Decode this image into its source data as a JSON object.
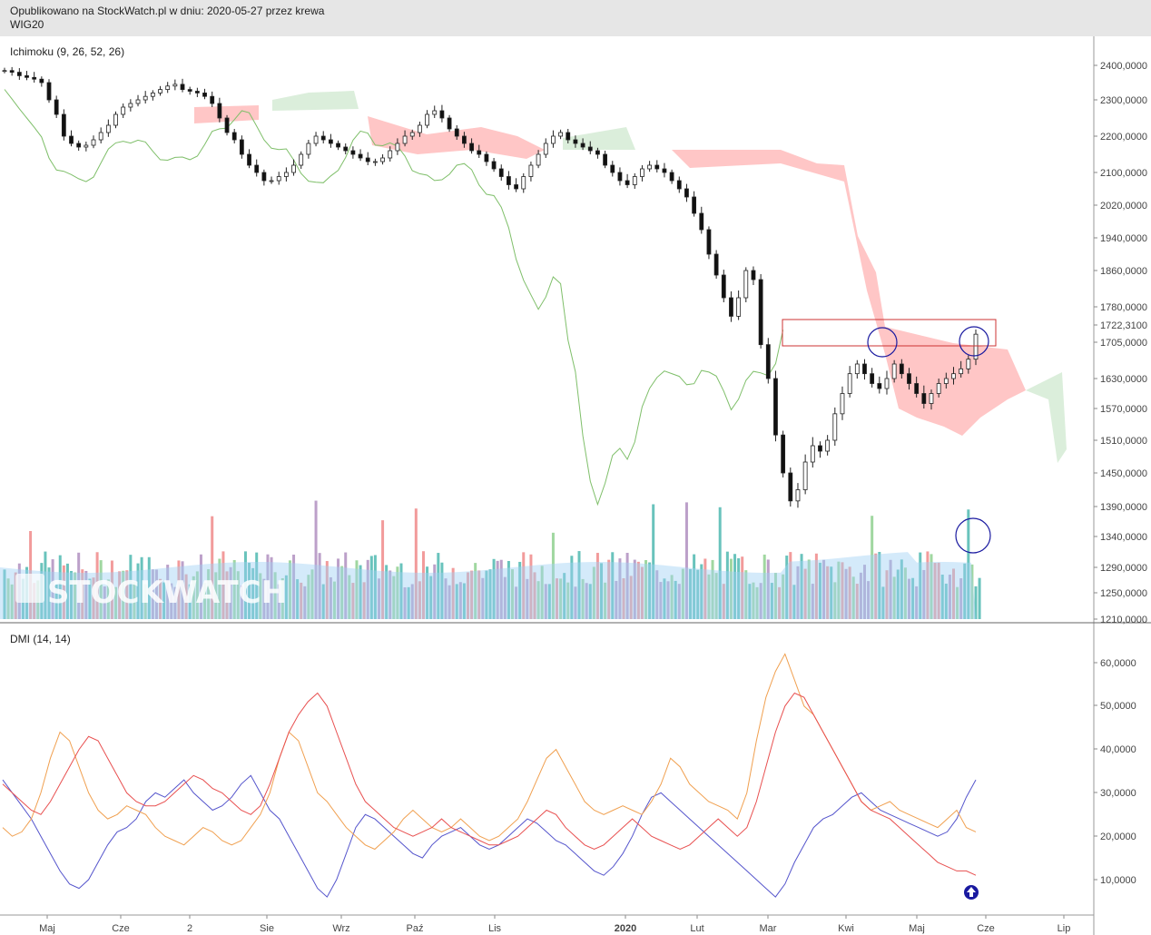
{
  "header": {
    "published": "Opublikowano na StockWatch.pl w dniu: 2020-05-27 przez krewa",
    "symbol": "WIG20"
  },
  "logo_text": "STOCKWATCH",
  "colors": {
    "bull": "#2e7d32",
    "bear": "#111111",
    "cloud_bear": "#ffb3b3",
    "cloud_bull": "#cfe8cf",
    "chikou": "#7fbf6a",
    "vol_green": "#8fd08f",
    "vol_red": "#f08a8a",
    "vol_purple": "#b08fc0",
    "vol_teal": "#4fb8b0",
    "vol_ma": "#9fd1f5",
    "dmi_plus": "#5555cc",
    "dmi_minus": "#f0a050",
    "adx": "#e85050",
    "annotation": "#1a1aa0",
    "rect": "#cc3333"
  },
  "chart_data": [
    {
      "type": "candlestick",
      "title": "Ichimoku (9, 26, 52, 26)",
      "ylim": [
        1210,
        2420
      ],
      "y_ticks": [
        "2400,0000",
        "2300,0000",
        "2200,0000",
        "2100,0000",
        "2020,0000",
        "1940,0000",
        "1860,0000",
        "1780,0000",
        "1705,0000",
        "1630,0000",
        "1570,0000",
        "1510,0000",
        "1450,0000",
        "1390,0000",
        "1340,0000",
        "1290,0000",
        "1250,0000",
        "1210,0000"
      ],
      "last_price_label": "1722,3100",
      "last_price": 1722.31,
      "x_ticks": [
        "Maj",
        "Cze",
        "2",
        "Sie",
        "Wrz",
        "Paź",
        "Lis",
        "2020",
        "Lut",
        "Mar",
        "Kwi",
        "Maj",
        "Cze",
        "Lip"
      ],
      "close_series": [
        2385,
        2380,
        2370,
        2365,
        2360,
        2350,
        2300,
        2260,
        2200,
        2180,
        2170,
        2175,
        2190,
        2210,
        2230,
        2260,
        2280,
        2290,
        2300,
        2310,
        2320,
        2330,
        2340,
        2345,
        2330,
        2325,
        2320,
        2310,
        2290,
        2250,
        2210,
        2190,
        2150,
        2120,
        2100,
        2080,
        2080,
        2090,
        2100,
        2120,
        2150,
        2180,
        2200,
        2190,
        2180,
        2170,
        2160,
        2150,
        2140,
        2130,
        2130,
        2140,
        2160,
        2180,
        2200,
        2210,
        2230,
        2260,
        2270,
        2250,
        2220,
        2200,
        2180,
        2160,
        2150,
        2130,
        2110,
        2090,
        2070,
        2060,
        2090,
        2120,
        2150,
        2180,
        2200,
        2210,
        2190,
        2180,
        2170,
        2160,
        2150,
        2120,
        2100,
        2080,
        2070,
        2090,
        2110,
        2120,
        2110,
        2100,
        2080,
        2060,
        2040,
        2000,
        1960,
        1900,
        1850,
        1800,
        1760,
        1800,
        1860,
        1840,
        1700,
        1630,
        1520,
        1450,
        1400,
        1420,
        1470,
        1500,
        1490,
        1510,
        1560,
        1600,
        1640,
        1660,
        1640,
        1620,
        1610,
        1630,
        1660,
        1640,
        1620,
        1600,
        1580,
        1600,
        1620,
        1630,
        1640,
        1650,
        1670,
        1722
      ],
      "cloud_bear_regions": "pink segments (Jun–Jul, Sep–Nov, Jan–Feb, Mar–May)",
      "cloud_bull_regions": "green segments (Jul, Dec, Jun)",
      "volume_ma": 1290,
      "annotations": [
        "rectangle at ~1705-1760",
        "circles at breakout points"
      ]
    },
    {
      "type": "line",
      "title": "DMI (14, 14)",
      "ylim": [
        2,
        68
      ],
      "y_ticks": [
        "60,0000",
        "50,0000",
        "40,0000",
        "30,0000",
        "20,0000",
        "10,0000"
      ],
      "series": [
        {
          "role": "plus",
          "values": [
            33,
            30,
            27,
            24,
            20,
            16,
            12,
            9,
            8,
            10,
            14,
            18,
            21,
            22,
            24,
            28,
            30,
            29,
            31,
            33,
            30,
            28,
            26,
            27,
            29,
            32,
            34,
            30,
            26,
            24,
            20,
            16,
            12,
            8,
            6,
            10,
            16,
            22,
            25,
            24,
            22,
            20,
            18,
            16,
            15,
            18,
            20,
            21,
            22,
            20,
            18,
            17,
            18,
            20,
            22,
            24,
            23,
            21,
            19,
            18,
            16,
            14,
            12,
            11,
            13,
            16,
            20,
            25,
            29,
            30,
            28,
            26,
            24,
            22,
            20,
            18,
            16,
            14,
            12,
            10,
            8,
            6,
            9,
            14,
            18,
            22,
            24,
            25,
            27,
            29,
            30,
            28,
            26,
            25,
            24,
            23,
            22,
            21,
            20,
            21,
            24,
            29,
            33
          ]
        },
        {
          "role": "minus",
          "values": [
            22,
            20,
            21,
            24,
            30,
            38,
            44,
            42,
            36,
            30,
            26,
            24,
            25,
            27,
            26,
            25,
            22,
            20,
            19,
            18,
            20,
            22,
            21,
            19,
            18,
            19,
            22,
            25,
            30,
            38,
            44,
            42,
            36,
            30,
            28,
            25,
            22,
            20,
            18,
            17,
            19,
            21,
            24,
            26,
            24,
            22,
            21,
            22,
            24,
            22,
            20,
            19,
            20,
            22,
            24,
            28,
            33,
            38,
            40,
            36,
            32,
            28,
            26,
            25,
            26,
            27,
            26,
            25,
            28,
            32,
            38,
            36,
            32,
            30,
            28,
            27,
            26,
            24,
            30,
            42,
            52,
            58,
            62,
            56,
            50,
            48,
            44,
            40,
            36,
            32,
            28,
            26,
            27,
            28,
            26,
            25,
            24,
            23,
            22,
            24,
            26,
            22,
            21
          ]
        },
        {
          "role": "adx",
          "values": [
            32,
            30,
            28,
            26,
            25,
            28,
            32,
            36,
            40,
            43,
            42,
            38,
            34,
            30,
            28,
            27,
            27,
            28,
            30,
            32,
            34,
            33,
            31,
            30,
            28,
            26,
            25,
            27,
            32,
            38,
            44,
            48,
            51,
            53,
            50,
            44,
            38,
            32,
            28,
            26,
            24,
            22,
            21,
            20,
            21,
            22,
            24,
            22,
            21,
            20,
            19,
            18,
            18,
            19,
            20,
            22,
            24,
            26,
            25,
            22,
            20,
            18,
            17,
            18,
            20,
            22,
            24,
            22,
            20,
            19,
            18,
            17,
            18,
            20,
            22,
            24,
            22,
            20,
            22,
            28,
            36,
            44,
            50,
            53,
            52,
            48,
            44,
            40,
            36,
            32,
            28,
            26,
            25,
            24,
            22,
            20,
            18,
            16,
            14,
            13,
            12,
            12,
            11
          ]
        }
      ]
    }
  ],
  "dmi_x_ticks": [
    "Maj",
    "Cze",
    "2",
    "Sie",
    "Wrz",
    "Paź",
    "Lis",
    "2020",
    "Lut",
    "Mar",
    "Kwi",
    "Maj",
    "Cze",
    "Lip"
  ]
}
